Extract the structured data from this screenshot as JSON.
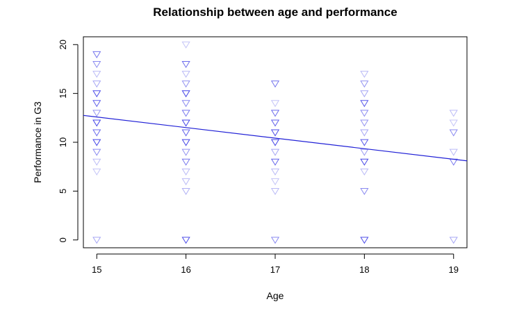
{
  "chart_data": {
    "type": "scatter",
    "title": "Relationship between age and performance",
    "xlabel": "Age",
    "ylabel": "Performance in G3",
    "xlim": [
      14.85,
      19.15
    ],
    "ylim": [
      -0.8,
      20.8
    ],
    "x_ticks": [
      15,
      16,
      17,
      18,
      19
    ],
    "y_ticks": [
      0,
      5,
      10,
      15,
      20
    ],
    "grid": false,
    "marker": "triangle-down",
    "colors": {
      "point": "#3a3ae6",
      "line": "#1f1fd6",
      "axis": "#000000"
    },
    "points": [
      {
        "x": 15,
        "y": 19,
        "alpha": 0.7
      },
      {
        "x": 15,
        "y": 18,
        "alpha": 0.6
      },
      {
        "x": 15,
        "y": 17,
        "alpha": 0.35
      },
      {
        "x": 15,
        "y": 16,
        "alpha": 0.45
      },
      {
        "x": 15,
        "y": 15,
        "alpha": 0.9
      },
      {
        "x": 15,
        "y": 14,
        "alpha": 0.8
      },
      {
        "x": 15,
        "y": 13,
        "alpha": 0.55
      },
      {
        "x": 15,
        "y": 12,
        "alpha": 0.95
      },
      {
        "x": 15,
        "y": 11,
        "alpha": 0.75
      },
      {
        "x": 15,
        "y": 10,
        "alpha": 0.95
      },
      {
        "x": 15,
        "y": 9,
        "alpha": 0.6
      },
      {
        "x": 15,
        "y": 8,
        "alpha": 0.35
      },
      {
        "x": 15,
        "y": 7,
        "alpha": 0.3
      },
      {
        "x": 15,
        "y": 0,
        "alpha": 0.45
      },
      {
        "x": 16,
        "y": 20,
        "alpha": 0.3
      },
      {
        "x": 16,
        "y": 18,
        "alpha": 0.75
      },
      {
        "x": 16,
        "y": 17,
        "alpha": 0.35
      },
      {
        "x": 16,
        "y": 16,
        "alpha": 0.55
      },
      {
        "x": 16,
        "y": 15,
        "alpha": 0.95
      },
      {
        "x": 16,
        "y": 14,
        "alpha": 0.6
      },
      {
        "x": 16,
        "y": 13,
        "alpha": 0.7
      },
      {
        "x": 16,
        "y": 12,
        "alpha": 0.95
      },
      {
        "x": 16,
        "y": 11,
        "alpha": 0.8
      },
      {
        "x": 16,
        "y": 10,
        "alpha": 0.95
      },
      {
        "x": 16,
        "y": 9,
        "alpha": 0.55
      },
      {
        "x": 16,
        "y": 8,
        "alpha": 0.7
      },
      {
        "x": 16,
        "y": 7,
        "alpha": 0.35
      },
      {
        "x": 16,
        "y": 6,
        "alpha": 0.35
      },
      {
        "x": 16,
        "y": 5,
        "alpha": 0.4
      },
      {
        "x": 16,
        "y": 0,
        "alpha": 0.9
      },
      {
        "x": 17,
        "y": 16,
        "alpha": 0.7
      },
      {
        "x": 17,
        "y": 14,
        "alpha": 0.3
      },
      {
        "x": 17,
        "y": 13,
        "alpha": 0.75
      },
      {
        "x": 17,
        "y": 12,
        "alpha": 0.8
      },
      {
        "x": 17,
        "y": 11,
        "alpha": 0.9
      },
      {
        "x": 17,
        "y": 10,
        "alpha": 0.95
      },
      {
        "x": 17,
        "y": 9,
        "alpha": 0.45
      },
      {
        "x": 17,
        "y": 8,
        "alpha": 0.8
      },
      {
        "x": 17,
        "y": 7,
        "alpha": 0.35
      },
      {
        "x": 17,
        "y": 6,
        "alpha": 0.3
      },
      {
        "x": 17,
        "y": 5,
        "alpha": 0.35
      },
      {
        "x": 17,
        "y": 0,
        "alpha": 0.6
      },
      {
        "x": 18,
        "y": 17,
        "alpha": 0.35
      },
      {
        "x": 18,
        "y": 16,
        "alpha": 0.55
      },
      {
        "x": 18,
        "y": 15,
        "alpha": 0.45
      },
      {
        "x": 18,
        "y": 14,
        "alpha": 0.85
      },
      {
        "x": 18,
        "y": 13,
        "alpha": 0.6
      },
      {
        "x": 18,
        "y": 12,
        "alpha": 0.55
      },
      {
        "x": 18,
        "y": 11,
        "alpha": 0.45
      },
      {
        "x": 18,
        "y": 10,
        "alpha": 0.85
      },
      {
        "x": 18,
        "y": 9,
        "alpha": 0.5
      },
      {
        "x": 18,
        "y": 8,
        "alpha": 0.95
      },
      {
        "x": 18,
        "y": 7,
        "alpha": 0.35
      },
      {
        "x": 18,
        "y": 5,
        "alpha": 0.6
      },
      {
        "x": 18,
        "y": 0,
        "alpha": 0.9
      },
      {
        "x": 19,
        "y": 13,
        "alpha": 0.35
      },
      {
        "x": 19,
        "y": 12,
        "alpha": 0.3
      },
      {
        "x": 19,
        "y": 11,
        "alpha": 0.6
      },
      {
        "x": 19,
        "y": 9,
        "alpha": 0.35
      },
      {
        "x": 19,
        "y": 8,
        "alpha": 0.7
      },
      {
        "x": 19,
        "y": 0,
        "alpha": 0.45
      }
    ],
    "trendline": {
      "x": [
        14.85,
        19.15
      ],
      "y": [
        12.75,
        8.1
      ]
    }
  }
}
